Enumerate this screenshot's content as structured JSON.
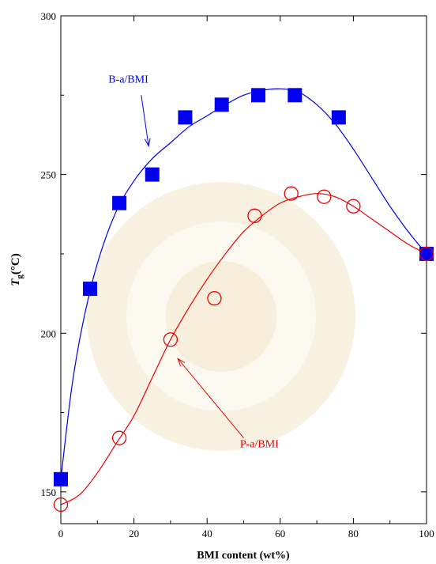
{
  "chart_data": {
    "type": "scatter",
    "xlabel": "BMI content (wt%)",
    "ylabel_main": "T",
    "ylabel_sub": "g",
    "ylabel_unit": "(°C)",
    "xlim": [
      0,
      100
    ],
    "ylim": [
      140,
      300
    ],
    "xticks": [
      0,
      20,
      40,
      60,
      80,
      100
    ],
    "yticks": [
      150,
      200,
      250,
      300
    ],
    "grid": false,
    "series": [
      {
        "name": "B-a/BMI",
        "color": "#0000ee",
        "marker": "filled-square",
        "points": [
          [
            0,
            154
          ],
          [
            8,
            214
          ],
          [
            16,
            241
          ],
          [
            25,
            250
          ],
          [
            34,
            268
          ],
          [
            44,
            272
          ],
          [
            54,
            275
          ],
          [
            64,
            275
          ],
          [
            76,
            268
          ],
          [
            100,
            225
          ]
        ],
        "fit": [
          [
            0,
            154
          ],
          [
            3,
            183
          ],
          [
            6,
            203
          ],
          [
            10,
            222
          ],
          [
            15,
            238
          ],
          [
            20,
            248
          ],
          [
            25,
            255
          ],
          [
            30,
            260
          ],
          [
            35,
            265
          ],
          [
            40,
            268.5
          ],
          [
            45,
            272
          ],
          [
            50,
            275
          ],
          [
            55,
            276.5
          ],
          [
            60,
            277
          ],
          [
            65,
            276
          ],
          [
            70,
            272
          ],
          [
            75,
            266
          ],
          [
            80,
            258
          ],
          [
            85,
            249
          ],
          [
            90,
            240
          ],
          [
            95,
            232
          ],
          [
            100,
            225
          ]
        ]
      },
      {
        "name": "P-a/BMI",
        "color": "#ee0000",
        "marker": "open-circle",
        "points": [
          [
            0,
            146
          ],
          [
            16,
            167
          ],
          [
            30,
            198
          ],
          [
            42,
            211
          ],
          [
            53,
            237
          ],
          [
            63,
            244
          ],
          [
            72,
            243
          ],
          [
            80,
            240
          ],
          [
            100,
            225
          ]
        ],
        "fit": [
          [
            0,
            146
          ],
          [
            5,
            149
          ],
          [
            10,
            156
          ],
          [
            15,
            165
          ],
          [
            20,
            174
          ],
          [
            25,
            186
          ],
          [
            30,
            198
          ],
          [
            35,
            208
          ],
          [
            40,
            217
          ],
          [
            45,
            225
          ],
          [
            50,
            232
          ],
          [
            55,
            237
          ],
          [
            60,
            241
          ],
          [
            65,
            243
          ],
          [
            70,
            244
          ],
          [
            75,
            243
          ],
          [
            80,
            240
          ],
          [
            85,
            236
          ],
          [
            90,
            232
          ],
          [
            95,
            228
          ],
          [
            100,
            225
          ]
        ]
      }
    ],
    "annotations": [
      {
        "text": "B-a/BMI",
        "color": "#0000ee",
        "text_at": [
          13,
          279
        ],
        "arrow_from": [
          22,
          275
        ],
        "arrow_to": [
          24,
          259
        ]
      },
      {
        "text": "P-a/BMI",
        "color": "#ee0000",
        "text_at": [
          49,
          164
        ],
        "arrow_from": [
          50,
          167
        ],
        "arrow_to": [
          32,
          192
        ]
      }
    ]
  }
}
